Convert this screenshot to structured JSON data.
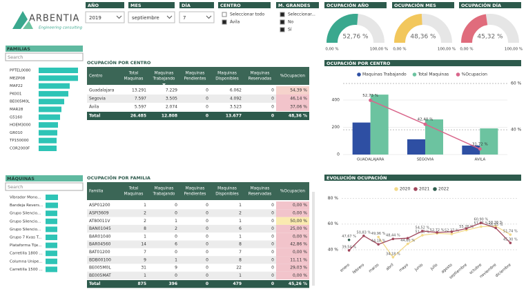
{
  "logo": {
    "name": "ARBENTIA",
    "tagline": "Engineering consulting"
  },
  "filters": [
    {
      "label": "AÑO",
      "value": "2019"
    },
    {
      "label": "MES",
      "value": "septiembre"
    },
    {
      "label": "DÍA",
      "value": "7"
    }
  ],
  "centro_filter": {
    "label": "CENTRO",
    "options": [
      "Seleccionar todo",
      "Ávila"
    ]
  },
  "grandes_filter": {
    "label": "M. GRANDES",
    "options": [
      "Seleccionar...",
      "No",
      "Sí"
    ]
  },
  "gauges": [
    {
      "title": "OCUPACIÓN AÑO",
      "value": 52.76,
      "value_label": "52,76 %",
      "range": [
        {
          "value": 0,
          "label": "0,00 %"
        },
        {
          "value": 100,
          "label": "100,00 %"
        }
      ],
      "color": "#3aa88e"
    },
    {
      "title": "OCUPACIÓN MES",
      "value": 48.36,
      "value_label": "48,36 %",
      "range": [
        {
          "value": 0,
          "label": "0,00 %"
        },
        {
          "value": 100,
          "label": "100,00 %"
        }
      ],
      "color": "#f2c75c"
    },
    {
      "title": "OCUPACIÓN DÍA",
      "value": 45.32,
      "value_label": "45,32 %",
      "range": [
        {
          "value": 0,
          "label": "0,00 %"
        },
        {
          "value": 100,
          "label": "100,00 %"
        }
      ],
      "color": "#e06c7c"
    }
  ],
  "familias": {
    "title": "FAMILIAS",
    "search": "Search",
    "color": "#2ec4b6",
    "items": [
      "PPTEL0080",
      "MEZP08",
      "MAP22",
      "PK001",
      "BE005M0L",
      "MAR28",
      "G5160",
      "HOEM3000",
      "GR010",
      "TP150000",
      "COR2000F"
    ],
    "values": [
      57,
      57,
      45,
      43,
      37,
      33,
      31,
      28,
      27,
      26,
      26
    ]
  },
  "maquinas": {
    "title": "MÁQUINAS",
    "search": "Search",
    "color": "#2ec4b6",
    "items": [
      "Vibrador Mono...",
      "Bandeja Revers...",
      "Grupo Silencio...",
      "Grupo Silencio...",
      "Grupo Silencio...",
      "Grupo 7 Kvas T...",
      "Plataforma Tije...",
      "Carretilla 1800 ...",
      "Columna Unipe...",
      "Carretilla 1500 ..."
    ],
    "values": [
      18,
      18,
      17,
      17,
      17,
      17,
      17,
      17,
      17,
      17
    ]
  },
  "centro_table": {
    "title": "OCUPACIÓN POR CENTRO",
    "columns": [
      [
        "Centro"
      ],
      [
        "Total",
        "Maquinas"
      ],
      [
        "Maquinas",
        "Trabajando"
      ],
      [
        "Maquinas",
        "Pendientes"
      ],
      [
        "Maquinas",
        "Disponibles"
      ],
      [
        "Maquinas",
        "Reservadas"
      ],
      [
        "%Ocupacion"
      ]
    ],
    "rows": [
      [
        "Guadalajara",
        "13.291",
        "7.229",
        "0",
        "6.062",
        "0",
        "54,39 %"
      ],
      [
        "Segovia",
        "7.597",
        "3.505",
        "0",
        "4.092",
        "0",
        "46,14 %"
      ],
      [
        "Ávila",
        "5.597",
        "2.074",
        "0",
        "3.523",
        "0",
        "37,06 %"
      ]
    ],
    "ocupacion_colors": [
      "#f6d3cc",
      "#f2c4cb",
      "#f2c4cb"
    ],
    "total": [
      "Total",
      "26.485",
      "12.808",
      "0",
      "13.677",
      "0",
      "48,36 %"
    ]
  },
  "familia_table": {
    "title": "OCUPACIÓN POR FAMILIA",
    "columns": [
      [
        "Familia"
      ],
      [
        "Total",
        "Maquinas"
      ],
      [
        "Maquinas",
        "Trabajando"
      ],
      [
        "Maquinas",
        "Pendientes"
      ],
      [
        "Maquinas",
        "Disponibles"
      ],
      [
        "Maquinas",
        "Reservadas"
      ],
      [
        "%Ocupacion"
      ]
    ],
    "rows": [
      [
        "ASP01200",
        "1",
        "0",
        "0",
        "1",
        "0",
        "0,00 %"
      ],
      [
        "ASPI3609",
        "2",
        "0",
        "0",
        "2",
        "0",
        "0,00 %"
      ],
      [
        "AT80011V",
        "2",
        "1",
        "0",
        "1",
        "0",
        "50,00 %"
      ],
      [
        "BAN01045",
        "8",
        "2",
        "0",
        "6",
        "0",
        "25,00 %"
      ],
      [
        "BAR01040",
        "1",
        "0",
        "0",
        "1",
        "0",
        "0,00 %"
      ],
      [
        "BAR04560",
        "14",
        "6",
        "0",
        "8",
        "0",
        "42,86 %"
      ],
      [
        "BAT01200",
        "7",
        "0",
        "0",
        "7",
        "0",
        "0,00 %"
      ],
      [
        "BDB00100",
        "9",
        "1",
        "0",
        "8",
        "0",
        "11,11 %"
      ],
      [
        "BE005M0L",
        "31",
        "9",
        "0",
        "22",
        "0",
        "29,03 %"
      ],
      [
        "BE005MAT",
        "1",
        "0",
        "0",
        "1",
        "0",
        "0,00 %"
      ]
    ],
    "ocupacion_colors": [
      "#f2c4cb",
      "#f2c4cb",
      "#faeab0",
      "#f2c4cb",
      "#f2c4cb",
      "#f2c4cb",
      "#f2c4cb",
      "#f2c4cb",
      "#f2c4cb",
      "#f2c4cb"
    ],
    "total": [
      "Total",
      "875",
      "396",
      "0",
      "479",
      "0",
      "45,26 %"
    ]
  },
  "centro_chart": {
    "type": "bar",
    "title": "OCUPACIÓN POR CENTRO",
    "categories": [
      "GUADALAJARA",
      "SEGOVIA",
      "AVILA"
    ],
    "series": [
      {
        "name": "Maquinas Trabajando",
        "color": "#2e4fa3",
        "values": [
          235,
          112,
          66
        ]
      },
      {
        "name": "Total Maquinas",
        "color": "#6cc3a0",
        "values": [
          440,
          258,
          192
        ]
      },
      {
        "name": "%Ocupacion",
        "color": "#d9668b",
        "type": "line",
        "axis": "y2",
        "values": [
          52.73,
          42.4,
          31.72
        ],
        "value_labels": [
          "52,73 %",
          "42,40 %",
          "31,72 %"
        ]
      }
    ],
    "ylim": [
      0,
      552
    ],
    "yticks": [
      0,
      200,
      400
    ],
    "y2lim": [
      29.3,
      61.8
    ],
    "y2ticks": [
      {
        "value": 40,
        "label": "40 %"
      },
      {
        "value": 60,
        "label": "60 %"
      }
    ]
  },
  "evolucion_chart": {
    "type": "line",
    "title": "EVOLUCIÓN OCUPACIÓN",
    "categories": [
      "enero",
      "febrero",
      "marzo",
      "abril",
      "mayo",
      "junio",
      "julio",
      "agosto",
      "septiembre",
      "octubre",
      "noviembre",
      "diciembre"
    ],
    "series": [
      {
        "name": "2020",
        "color": "#f2d98a",
        "values": [
          null,
          null,
          49.96,
          34.18,
          44.6,
          51.3,
          52.72,
          52.27,
          55.26,
          57.97,
          58.38,
          51.74
        ],
        "value_labels": [
          null,
          null,
          "49,96 %",
          "34,18 %",
          "44,60 %",
          "51,30 %",
          "52,72 %",
          "52,27 %",
          "55,26 %",
          "57,97 %",
          "58,38 %",
          "51,74 %"
        ]
      },
      {
        "name": "2021",
        "color": "#a0455a",
        "values": [
          39.54,
          50.83,
          44.18,
          48.44,
          49.0,
          54.52,
          53.5,
          54.0,
          56.5,
          60.9,
          56.93,
          45.3
        ],
        "value_labels": [
          "39,54 %",
          "50,83 %",
          "44,18 %",
          "48,44 %",
          null,
          "54,52 %",
          null,
          null,
          null,
          "60,90 %",
          "56,93 %",
          "45,30 %"
        ]
      },
      {
        "name": "2022",
        "color": "#2e5e4e",
        "values": [
          47.67,
          null,
          null,
          null,
          null,
          null,
          null,
          null,
          null,
          null,
          null,
          null
        ],
        "value_labels": [
          "47,67 %",
          null,
          null,
          null,
          null,
          null,
          null,
          null,
          null,
          null,
          null,
          null
        ]
      }
    ],
    "ylim": [
      33,
      84
    ],
    "yticks": [
      {
        "value": 40,
        "label": "40 %"
      },
      {
        "value": 60,
        "label": "60 %"
      },
      {
        "value": 80,
        "label": "80 %"
      }
    ],
    "grid": true
  }
}
